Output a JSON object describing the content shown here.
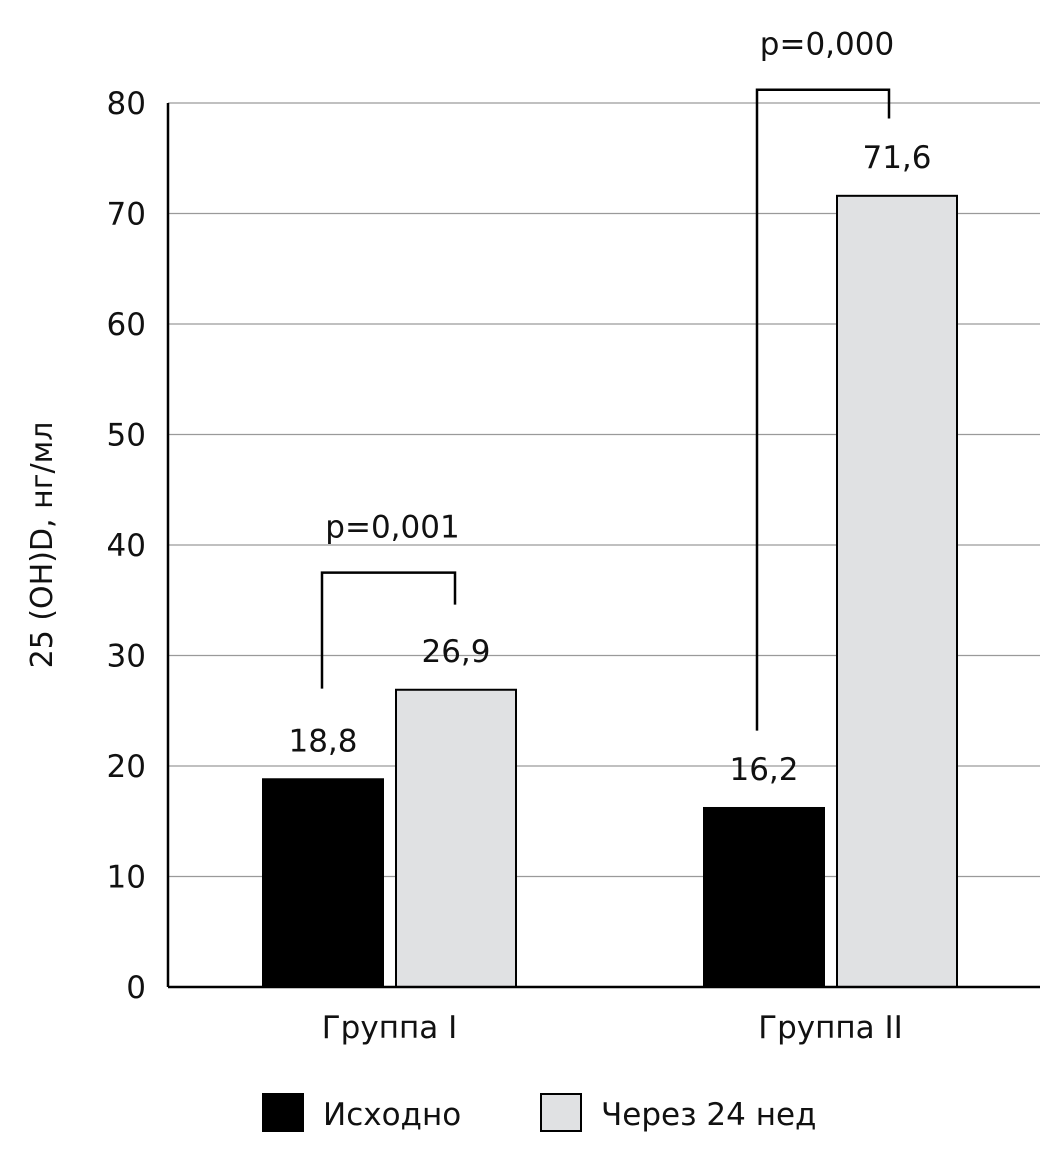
{
  "chart_data": {
    "type": "bar",
    "title": "",
    "xlabel": "",
    "ylabel": "25 (OH)D, нг/мл",
    "ylim": [
      0,
      80
    ],
    "yticks": [
      0,
      10,
      20,
      30,
      40,
      50,
      60,
      70,
      80
    ],
    "grid": true,
    "categories": [
      "Группа I",
      "Группа II"
    ],
    "series": [
      {
        "name": "Исходно",
        "values": [
          18.8,
          16.2
        ],
        "labels": [
          "18,8",
          "16,2"
        ],
        "color": "#000000"
      },
      {
        "name": "Через 24 нед",
        "values": [
          26.9,
          71.6
        ],
        "labels": [
          "26,9",
          "71,6"
        ],
        "color": "#e0e1e3"
      }
    ],
    "annotations": [
      {
        "category": 0,
        "text": "p=0,001"
      },
      {
        "category": 1,
        "text": "p=0,000"
      }
    ],
    "legend_position": "bottom"
  }
}
